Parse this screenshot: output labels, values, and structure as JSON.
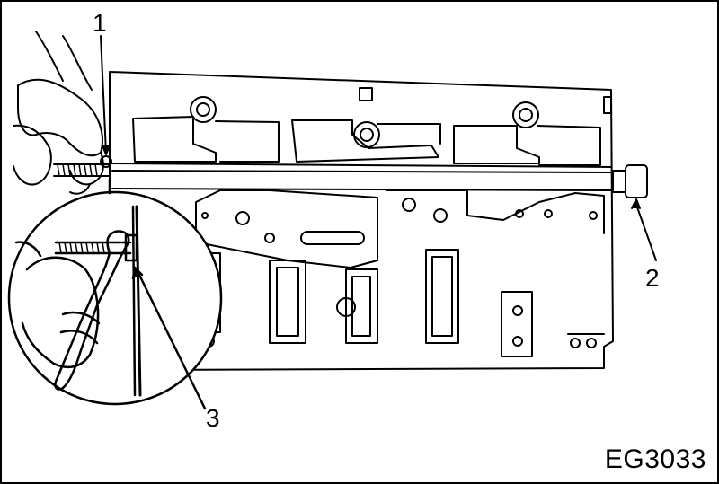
{
  "figure": {
    "callouts": [
      {
        "id": "1",
        "label": "1"
      },
      {
        "id": "2",
        "label": "2"
      },
      {
        "id": "3",
        "label": "3"
      }
    ],
    "code": "EG3033"
  }
}
